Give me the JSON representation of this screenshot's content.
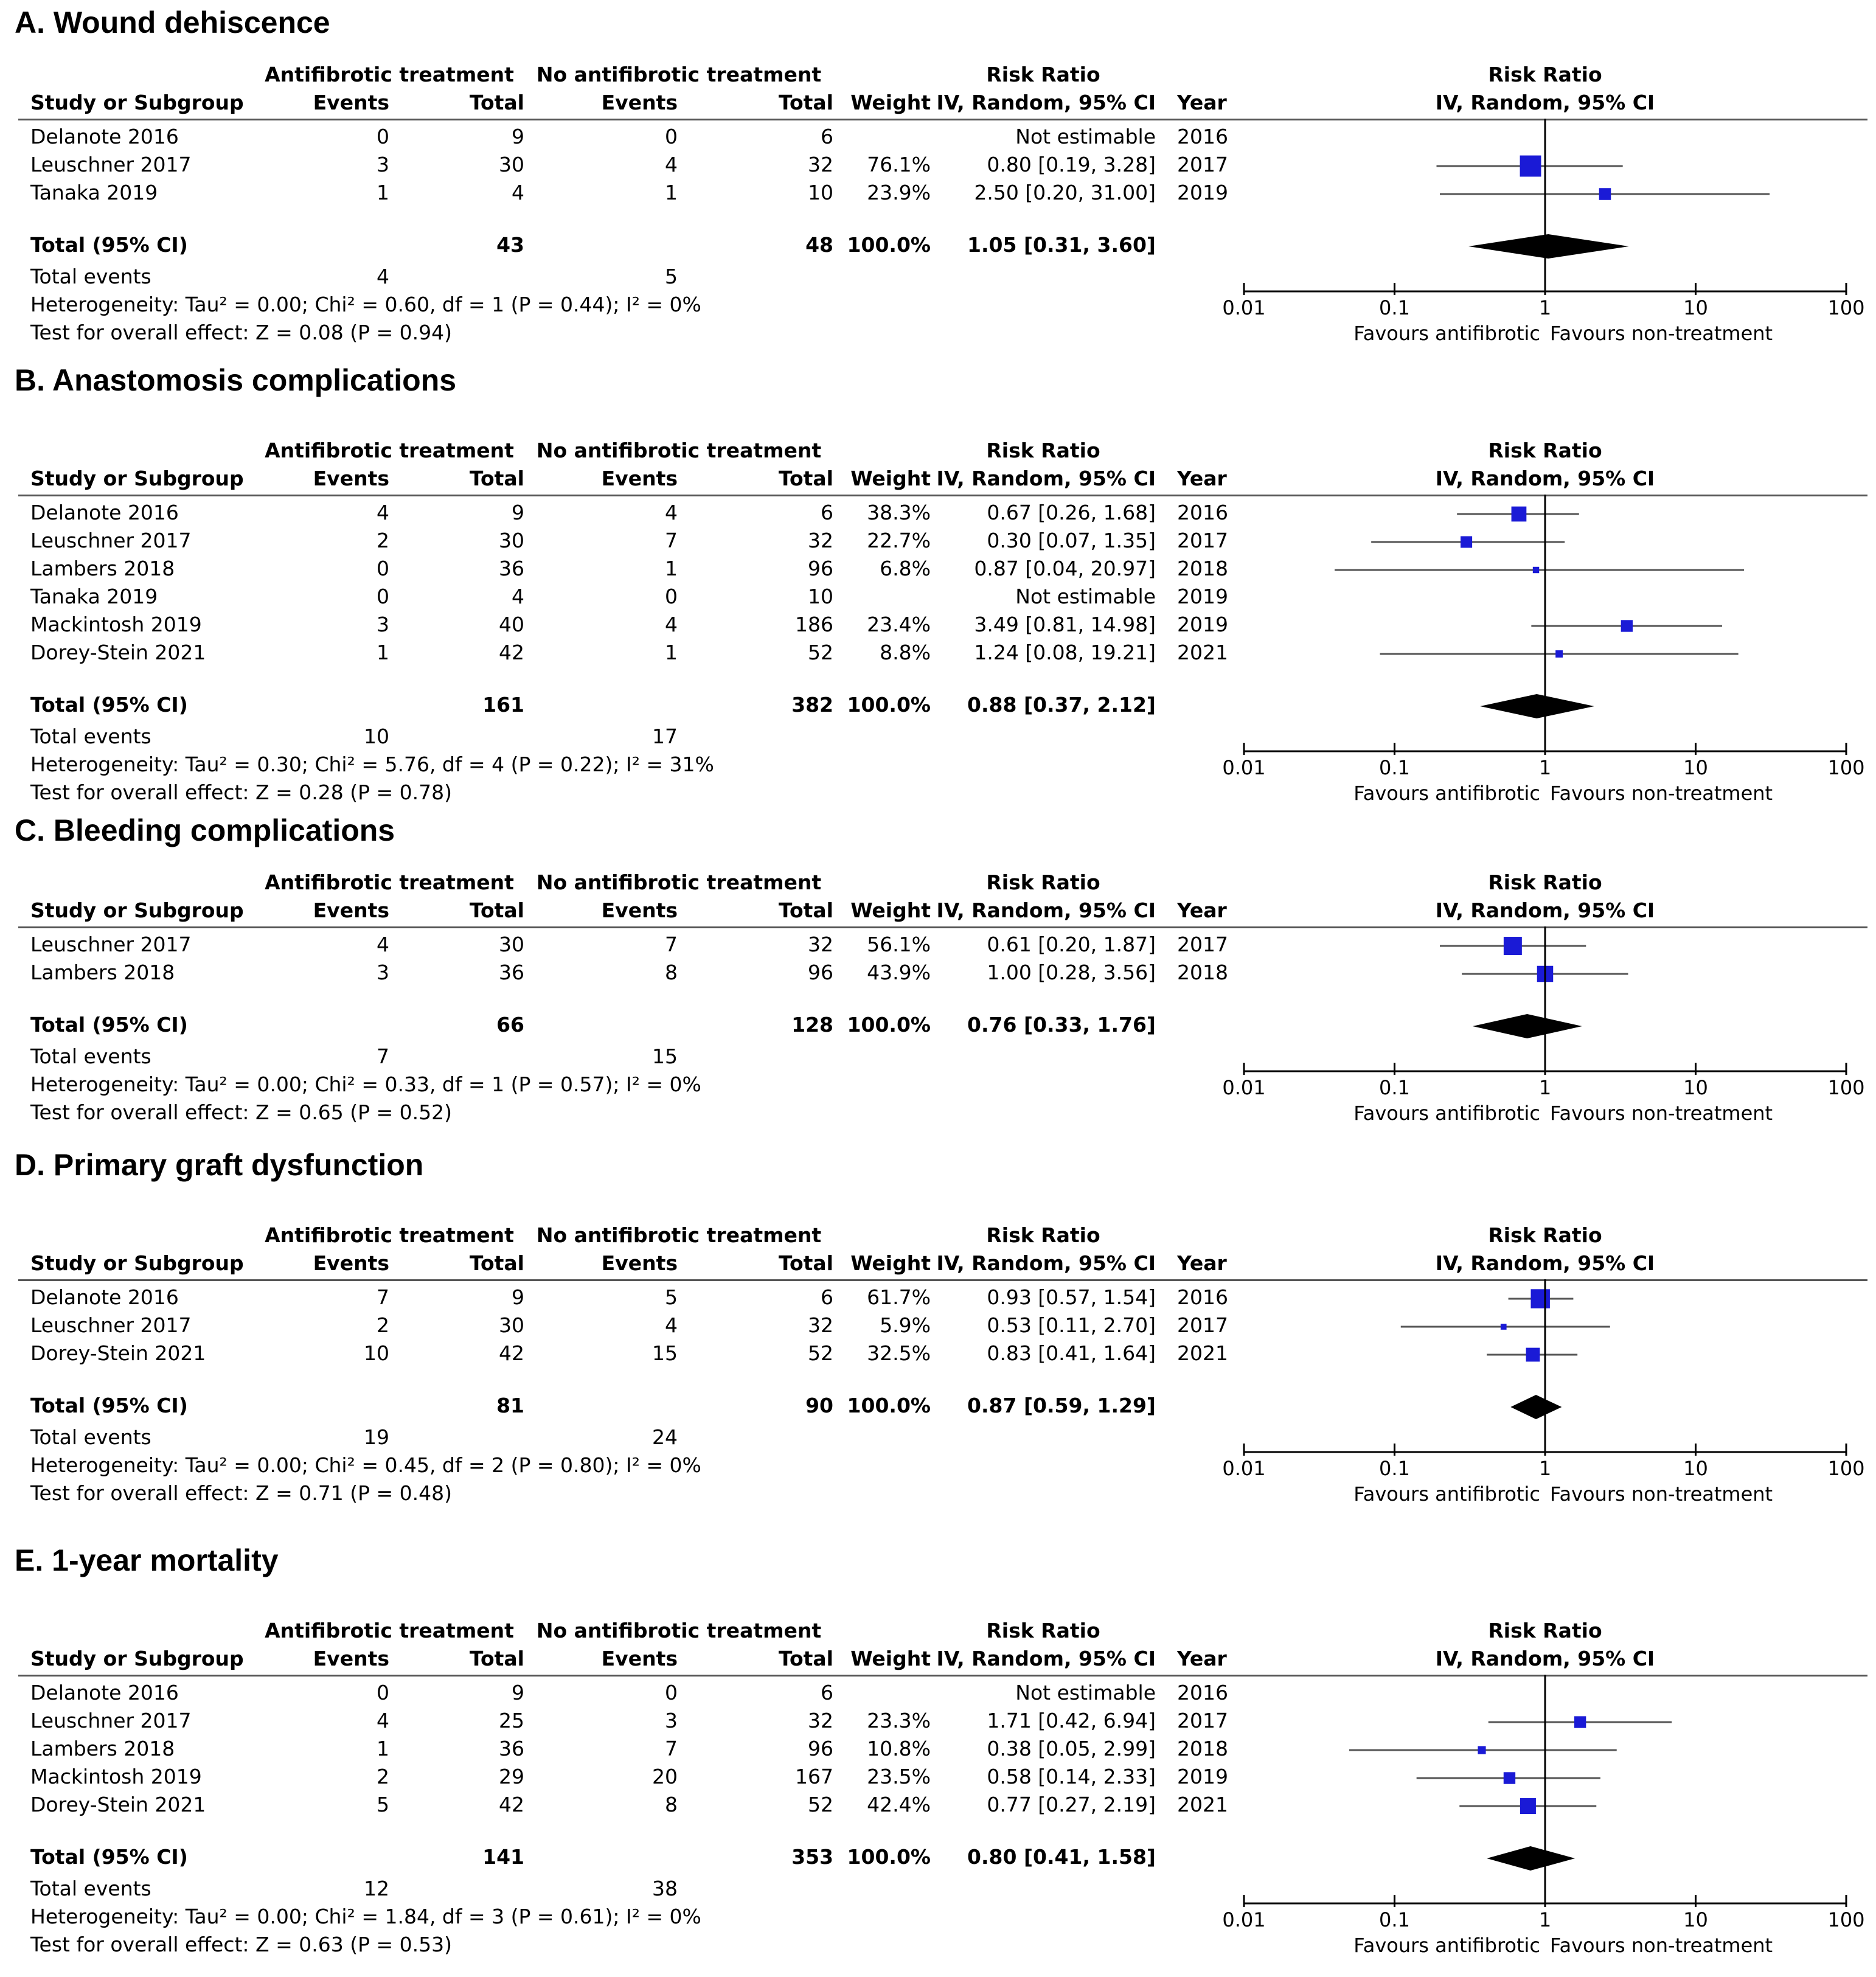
{
  "headers": {
    "group1": "Antifibrotic treatment",
    "group2": "No antifibrotic treatment",
    "study": "Study or Subgroup",
    "events": "Events",
    "total": "Total",
    "weight": "Weight",
    "rr_title": "Risk Ratio",
    "rr_method": "IV, Random, 95% CI",
    "year": "Year"
  },
  "axis": {
    "ticks": [
      {
        "value": 0.01,
        "label": "0.01"
      },
      {
        "value": 0.1,
        "label": "0.1"
      },
      {
        "value": 1,
        "label": "1"
      },
      {
        "value": 10,
        "label": "10"
      },
      {
        "value": 100,
        "label": "100"
      }
    ],
    "favours_left": "Favours antifibrotic",
    "favours_right": "Favours non-treatment"
  },
  "colors": {
    "marker": "#1a1ad6",
    "diamond": "#000000",
    "line": "#555555"
  },
  "chart_data": [
    {
      "type": "forest",
      "title": "A. Wound dehiscence",
      "xscale": "log",
      "xlim": [
        0.01,
        100
      ],
      "studies": [
        {
          "name": "Delanote 2016",
          "e1": "0",
          "t1": "9",
          "e2": "0",
          "t2": "6",
          "weight": "",
          "ci_text": "Not estimable",
          "year": "2016",
          "rr": null,
          "lo": null,
          "hi": null,
          "w": 0
        },
        {
          "name": "Leuschner 2017",
          "e1": "3",
          "t1": "30",
          "e2": "4",
          "t2": "32",
          "weight": "76.1%",
          "ci_text": "0.80 [0.19, 3.28]",
          "year": "2017",
          "rr": 0.8,
          "lo": 0.19,
          "hi": 3.28,
          "w": 76.1
        },
        {
          "name": "Tanaka 2019",
          "e1": "1",
          "t1": "4",
          "e2": "1",
          "t2": "10",
          "weight": "23.9%",
          "ci_text": "2.50 [0.20, 31.00]",
          "year": "2019",
          "rr": 2.5,
          "lo": 0.2,
          "hi": 31.0,
          "w": 23.9
        }
      ],
      "total": {
        "label": "Total (95% CI)",
        "t1": "43",
        "t2": "48",
        "weight": "100.0%",
        "ci_text": "1.05 [0.31, 3.60]",
        "rr": 1.05,
        "lo": 0.31,
        "hi": 3.6
      },
      "total_events": {
        "label": "Total events",
        "e1": "4",
        "e2": "5"
      },
      "heterogeneity": "Heterogeneity: Tau² = 0.00; Chi² = 0.60, df = 1 (P = 0.44); I² = 0%",
      "overall": "Test for overall effect: Z = 0.08 (P = 0.94)"
    },
    {
      "type": "forest",
      "title": "B. Anastomosis complications",
      "xscale": "log",
      "xlim": [
        0.01,
        100
      ],
      "studies": [
        {
          "name": "Delanote 2016",
          "e1": "4",
          "t1": "9",
          "e2": "4",
          "t2": "6",
          "weight": "38.3%",
          "ci_text": "0.67 [0.26, 1.68]",
          "year": "2016",
          "rr": 0.67,
          "lo": 0.26,
          "hi": 1.68,
          "w": 38.3
        },
        {
          "name": "Leuschner 2017",
          "e1": "2",
          "t1": "30",
          "e2": "7",
          "t2": "32",
          "weight": "22.7%",
          "ci_text": "0.30 [0.07, 1.35]",
          "year": "2017",
          "rr": 0.3,
          "lo": 0.07,
          "hi": 1.35,
          "w": 22.7
        },
        {
          "name": "Lambers 2018",
          "e1": "0",
          "t1": "36",
          "e2": "1",
          "t2": "96",
          "weight": "6.8%",
          "ci_text": "0.87 [0.04, 20.97]",
          "year": "2018",
          "rr": 0.87,
          "lo": 0.04,
          "hi": 20.97,
          "w": 6.8
        },
        {
          "name": "Tanaka 2019",
          "e1": "0",
          "t1": "4",
          "e2": "0",
          "t2": "10",
          "weight": "",
          "ci_text": "Not estimable",
          "year": "2019",
          "rr": null,
          "lo": null,
          "hi": null,
          "w": 0
        },
        {
          "name": "Mackintosh 2019",
          "e1": "3",
          "t1": "40",
          "e2": "4",
          "t2": "186",
          "weight": "23.4%",
          "ci_text": "3.49 [0.81, 14.98]",
          "year": "2019",
          "rr": 3.49,
          "lo": 0.81,
          "hi": 14.98,
          "w": 23.4
        },
        {
          "name": "Dorey-Stein 2021",
          "e1": "1",
          "t1": "42",
          "e2": "1",
          "t2": "52",
          "weight": "8.8%",
          "ci_text": "1.24 [0.08, 19.21]",
          "year": "2021",
          "rr": 1.24,
          "lo": 0.08,
          "hi": 19.21,
          "w": 8.8
        }
      ],
      "total": {
        "label": "Total (95% CI)",
        "t1": "161",
        "t2": "382",
        "weight": "100.0%",
        "ci_text": "0.88 [0.37, 2.12]",
        "rr": 0.88,
        "lo": 0.37,
        "hi": 2.12
      },
      "total_events": {
        "label": "Total events",
        "e1": "10",
        "e2": "17"
      },
      "heterogeneity": "Heterogeneity: Tau² = 0.30; Chi² = 5.76, df = 4 (P = 0.22); I² = 31%",
      "overall": "Test for overall effect: Z = 0.28 (P = 0.78)"
    },
    {
      "type": "forest",
      "title": "C. Bleeding complications",
      "xscale": "log",
      "xlim": [
        0.01,
        100
      ],
      "studies": [
        {
          "name": "Leuschner 2017",
          "e1": "4",
          "t1": "30",
          "e2": "7",
          "t2": "32",
          "weight": "56.1%",
          "ci_text": "0.61 [0.20, 1.87]",
          "year": "2017",
          "rr": 0.61,
          "lo": 0.2,
          "hi": 1.87,
          "w": 56.1
        },
        {
          "name": "Lambers 2018",
          "e1": "3",
          "t1": "36",
          "e2": "8",
          "t2": "96",
          "weight": "43.9%",
          "ci_text": "1.00 [0.28, 3.56]",
          "year": "2018",
          "rr": 1.0,
          "lo": 0.28,
          "hi": 3.56,
          "w": 43.9
        }
      ],
      "total": {
        "label": "Total (95% CI)",
        "t1": "66",
        "t2": "128",
        "weight": "100.0%",
        "ci_text": "0.76 [0.33, 1.76]",
        "rr": 0.76,
        "lo": 0.33,
        "hi": 1.76
      },
      "total_events": {
        "label": "Total events",
        "e1": "7",
        "e2": "15"
      },
      "heterogeneity": "Heterogeneity: Tau² = 0.00; Chi² = 0.33, df = 1 (P = 0.57); I² = 0%",
      "overall": "Test for overall effect: Z = 0.65 (P = 0.52)"
    },
    {
      "type": "forest",
      "title": "D. Primary graft dysfunction",
      "xscale": "log",
      "xlim": [
        0.01,
        100
      ],
      "studies": [
        {
          "name": "Delanote 2016",
          "e1": "7",
          "t1": "9",
          "e2": "5",
          "t2": "6",
          "weight": "61.7%",
          "ci_text": "0.93 [0.57, 1.54]",
          "year": "2016",
          "rr": 0.93,
          "lo": 0.57,
          "hi": 1.54,
          "w": 61.7
        },
        {
          "name": "Leuschner 2017",
          "e1": "2",
          "t1": "30",
          "e2": "4",
          "t2": "32",
          "weight": "5.9%",
          "ci_text": "0.53 [0.11, 2.70]",
          "year": "2017",
          "rr": 0.53,
          "lo": 0.11,
          "hi": 2.7,
          "w": 5.9
        },
        {
          "name": "Dorey-Stein 2021",
          "e1": "10",
          "t1": "42",
          "e2": "15",
          "t2": "52",
          "weight": "32.5%",
          "ci_text": "0.83 [0.41, 1.64]",
          "year": "2021",
          "rr": 0.83,
          "lo": 0.41,
          "hi": 1.64,
          "w": 32.5
        }
      ],
      "total": {
        "label": "Total (95% CI)",
        "t1": "81",
        "t2": "90",
        "weight": "100.0%",
        "ci_text": "0.87 [0.59, 1.29]",
        "rr": 0.87,
        "lo": 0.59,
        "hi": 1.29
      },
      "total_events": {
        "label": "Total events",
        "e1": "19",
        "e2": "24"
      },
      "heterogeneity": "Heterogeneity: Tau² = 0.00; Chi² = 0.45, df = 2 (P = 0.80); I² = 0%",
      "overall": "Test for overall effect: Z = 0.71 (P = 0.48)"
    },
    {
      "type": "forest",
      "title": "E. 1-year mortality",
      "xscale": "log",
      "xlim": [
        0.01,
        100
      ],
      "studies": [
        {
          "name": "Delanote 2016",
          "e1": "0",
          "t1": "9",
          "e2": "0",
          "t2": "6",
          "weight": "",
          "ci_text": "Not estimable",
          "year": "2016",
          "rr": null,
          "lo": null,
          "hi": null,
          "w": 0
        },
        {
          "name": "Leuschner 2017",
          "e1": "4",
          "t1": "25",
          "e2": "3",
          "t2": "32",
          "weight": "23.3%",
          "ci_text": "1.71 [0.42, 6.94]",
          "year": "2017",
          "rr": 1.71,
          "lo": 0.42,
          "hi": 6.94,
          "w": 23.3
        },
        {
          "name": "Lambers 2018",
          "e1": "1",
          "t1": "36",
          "e2": "7",
          "t2": "96",
          "weight": "10.8%",
          "ci_text": "0.38 [0.05, 2.99]",
          "year": "2018",
          "rr": 0.38,
          "lo": 0.05,
          "hi": 2.99,
          "w": 10.8
        },
        {
          "name": "Mackintosh 2019",
          "e1": "2",
          "t1": "29",
          "e2": "20",
          "t2": "167",
          "weight": "23.5%",
          "ci_text": "0.58 [0.14, 2.33]",
          "year": "2019",
          "rr": 0.58,
          "lo": 0.14,
          "hi": 2.33,
          "w": 23.5
        },
        {
          "name": "Dorey-Stein 2021",
          "e1": "5",
          "t1": "42",
          "e2": "8",
          "t2": "52",
          "weight": "42.4%",
          "ci_text": "0.77 [0.27, 2.19]",
          "year": "2021",
          "rr": 0.77,
          "lo": 0.27,
          "hi": 2.19,
          "w": 42.4
        }
      ],
      "total": {
        "label": "Total (95% CI)",
        "t1": "141",
        "t2": "353",
        "weight": "100.0%",
        "ci_text": "0.80 [0.41, 1.58]",
        "rr": 0.8,
        "lo": 0.41,
        "hi": 1.58
      },
      "total_events": {
        "label": "Total events",
        "e1": "12",
        "e2": "38"
      },
      "heterogeneity": "Heterogeneity: Tau² = 0.00; Chi² = 1.84, df = 3 (P = 0.61); I² = 0%",
      "overall": "Test for overall effect: Z = 0.63 (P = 0.53)"
    }
  ]
}
